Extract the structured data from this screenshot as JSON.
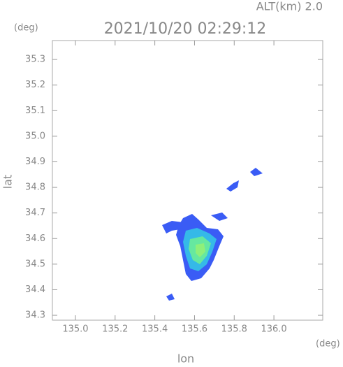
{
  "chart_data": {
    "type": "radar-map",
    "title": "2021/10/20 02:29:12",
    "altitude_label": "ALT(km) 2.0",
    "y_unit": "(deg)",
    "x_unit": "(deg)",
    "x_label": "lon",
    "y_label": "lat",
    "xlim": [
      134.884,
      136.246
    ],
    "ylim": [
      34.281,
      35.374
    ],
    "xticks": [
      {
        "value": 135.0,
        "label": "135.0"
      },
      135.2,
      135.4,
      135.6,
      135.8,
      {
        "value": 136.0,
        "label": "136.0"
      }
    ],
    "yticks": [
      34.3,
      34.4,
      34.5,
      34.6,
      34.7,
      34.8,
      34.9,
      {
        "value": 35.0,
        "label": "35.0"
      },
      35.1,
      35.2,
      35.3
    ]
  }
}
